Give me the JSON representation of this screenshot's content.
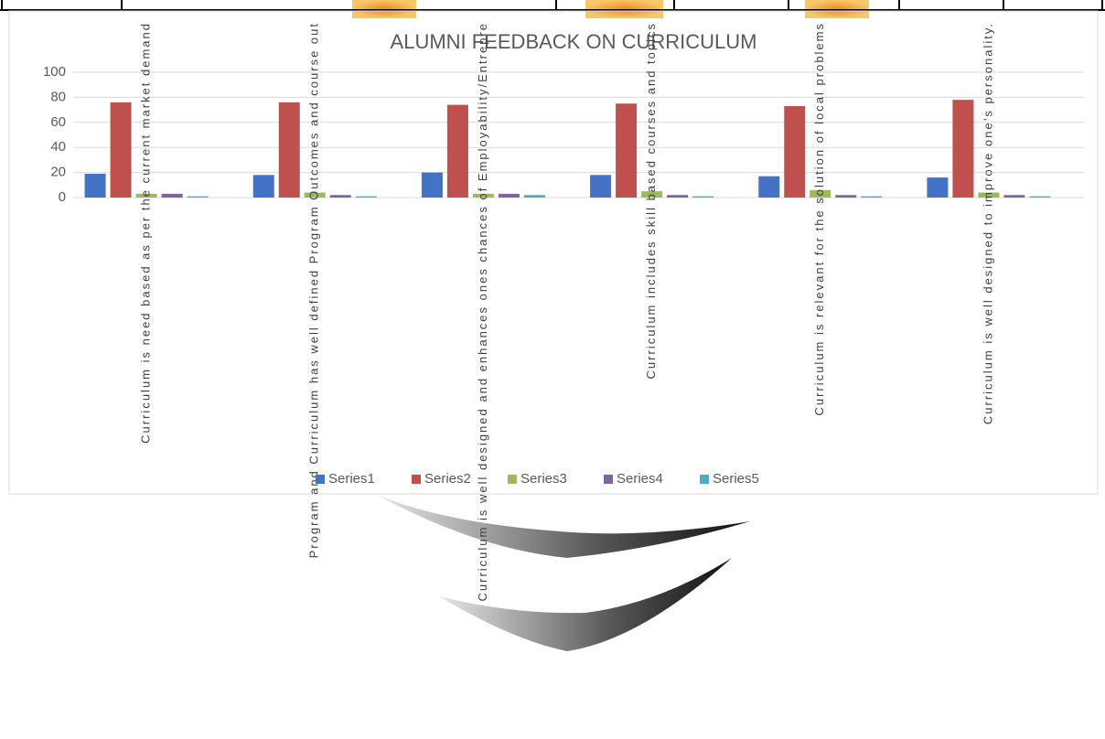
{
  "chart_data": {
    "type": "bar",
    "title": "ALUMNI FEEDBACK ON CURRICULUM",
    "categories": [
      "Curriculum is need based as per the current market demand",
      "Program and Curriculum has well defined Program Outcomes and course out",
      "Curriculum is well designed and enhances ones chances of Employability/Entrepre",
      "Curriculum includes skill based courses and topics",
      "Curriculum is relevant for the solution of local problems",
      "Curriculum is well designed to improve one’s personality."
    ],
    "series": [
      {
        "name": "Series1",
        "color": "#4472c4",
        "values": [
          19,
          18,
          20,
          18,
          17,
          16
        ]
      },
      {
        "name": "Series2",
        "color": "#c0504d",
        "values": [
          76,
          76,
          74,
          75,
          73,
          78
        ]
      },
      {
        "name": "Series3",
        "color": "#9bbb59",
        "values": [
          3,
          4,
          3,
          5,
          6,
          4
        ]
      },
      {
        "name": "Series4",
        "color": "#8064a2",
        "values": [
          3,
          2,
          3,
          2,
          2,
          2
        ]
      },
      {
        "name": "Series5",
        "color": "#4bacc6",
        "values": [
          1,
          1,
          2,
          1,
          1,
          1
        ]
      }
    ],
    "ylim": [
      0,
      100
    ],
    "yticks": [
      0,
      20,
      40,
      60,
      80,
      100
    ],
    "grid": true,
    "legend": "bottom"
  }
}
